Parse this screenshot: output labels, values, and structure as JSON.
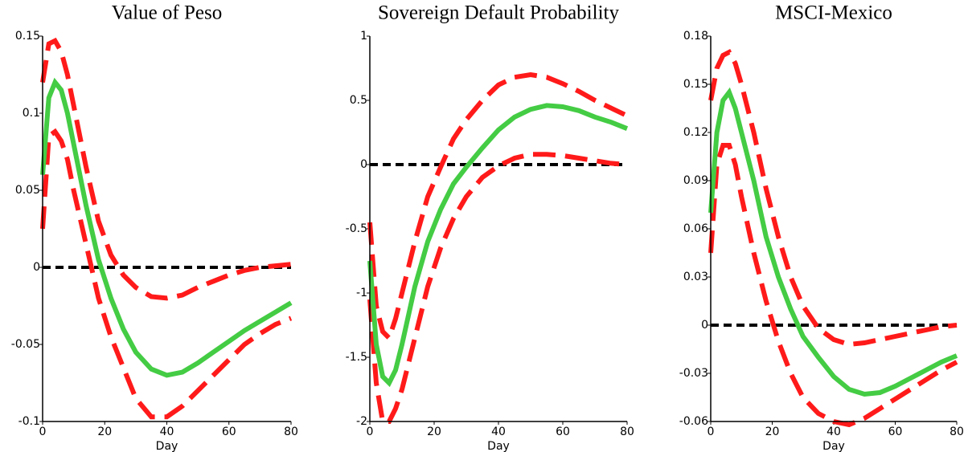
{
  "chart_data": [
    {
      "type": "line",
      "title": "Value of  Peso",
      "xlabel": "Day",
      "x": [
        0,
        2,
        4,
        6,
        8,
        10,
        14,
        18,
        22,
        26,
        30,
        35,
        40,
        45,
        50,
        55,
        60,
        65,
        70,
        75,
        80
      ],
      "xlim": [
        0,
        80
      ],
      "xticks": [
        0,
        20,
        40,
        60,
        80
      ],
      "ylim": [
        -0.1,
        0.15
      ],
      "yticks": [
        -0.1,
        -0.05,
        0,
        0.05,
        0.1,
        0.15
      ],
      "hline": 0,
      "series": [
        {
          "color": "#ff1a1a",
          "style": "dashed",
          "values": [
            0.12,
            0.145,
            0.147,
            0.14,
            0.125,
            0.105,
            0.065,
            0.03,
            0.008,
            -0.005,
            -0.013,
            -0.019,
            -0.02,
            -0.018,
            -0.013,
            -0.009,
            -0.005,
            -0.002,
            0,
            0.001,
            0.002
          ]
        },
        {
          "color": "#ff1a1a",
          "style": "dashed",
          "values": [
            0.025,
            0.085,
            0.088,
            0.082,
            0.07,
            0.05,
            0.015,
            -0.02,
            -0.045,
            -0.065,
            -0.085,
            -0.097,
            -0.097,
            -0.09,
            -0.08,
            -0.07,
            -0.06,
            -0.05,
            -0.043,
            -0.037,
            -0.033
          ]
        },
        {
          "color": "#44cc44",
          "style": "solid",
          "values": [
            0.06,
            0.11,
            0.12,
            0.115,
            0.1,
            0.08,
            0.04,
            0.005,
            -0.02,
            -0.04,
            -0.055,
            -0.066,
            -0.07,
            -0.068,
            -0.062,
            -0.055,
            -0.048,
            -0.041,
            -0.035,
            -0.029,
            -0.023
          ]
        }
      ]
    },
    {
      "type": "line",
      "title": "Sovereign Default Probability",
      "xlabel": "Day",
      "x": [
        0,
        2,
        4,
        6,
        8,
        10,
        14,
        18,
        22,
        26,
        30,
        35,
        40,
        45,
        50,
        55,
        60,
        65,
        70,
        75,
        80
      ],
      "xlim": [
        0,
        80
      ],
      "xticks": [
        0,
        20,
        40,
        60,
        80
      ],
      "ylim": [
        -2,
        1
      ],
      "yticks": [
        -2,
        -1.5,
        -1,
        -0.5,
        0,
        0.5,
        1
      ],
      "hline": 0,
      "series": [
        {
          "color": "#ff1a1a",
          "style": "dashed",
          "values": [
            -0.45,
            -1.1,
            -1.3,
            -1.35,
            -1.2,
            -1.0,
            -0.6,
            -0.25,
            -0.02,
            0.2,
            0.35,
            0.5,
            0.62,
            0.68,
            0.7,
            0.68,
            0.63,
            0.57,
            0.5,
            0.44,
            0.38
          ]
        },
        {
          "color": "#ff1a1a",
          "style": "dashed",
          "values": [
            -1.05,
            -1.7,
            -2.0,
            -2.0,
            -1.9,
            -1.75,
            -1.35,
            -0.95,
            -0.65,
            -0.42,
            -0.25,
            -0.1,
            -0.01,
            0.05,
            0.08,
            0.08,
            0.07,
            0.05,
            0.03,
            0.01,
            0.0
          ]
        },
        {
          "color": "#44cc44",
          "style": "solid",
          "values": [
            -0.75,
            -1.4,
            -1.65,
            -1.7,
            -1.6,
            -1.4,
            -0.95,
            -0.6,
            -0.35,
            -0.15,
            -0.02,
            0.13,
            0.27,
            0.37,
            0.43,
            0.46,
            0.45,
            0.42,
            0.37,
            0.33,
            0.28
          ]
        }
      ]
    },
    {
      "type": "line",
      "title": "MSCI-Mexico",
      "xlabel": "Day",
      "x": [
        0,
        2,
        4,
        6,
        8,
        10,
        14,
        18,
        22,
        26,
        30,
        35,
        40,
        45,
        50,
        55,
        60,
        65,
        70,
        75,
        80
      ],
      "xlim": [
        0,
        80
      ],
      "xticks": [
        0,
        20,
        40,
        60,
        80
      ],
      "ylim": [
        -0.06,
        0.18
      ],
      "yticks": [
        -0.06,
        -0.03,
        0,
        0.03,
        0.06,
        0.09,
        0.12,
        0.15,
        0.18
      ],
      "hline": 0,
      "series": [
        {
          "color": "#ff1a1a",
          "style": "dashed",
          "values": [
            0.14,
            0.16,
            0.168,
            0.17,
            0.163,
            0.15,
            0.12,
            0.085,
            0.055,
            0.03,
            0.012,
            -0.002,
            -0.009,
            -0.012,
            -0.011,
            -0.009,
            -0.007,
            -0.005,
            -0.003,
            -0.001,
            0
          ]
        },
        {
          "color": "#ff1a1a",
          "style": "dashed",
          "values": [
            0.045,
            0.1,
            0.112,
            0.112,
            0.1,
            0.08,
            0.045,
            0.015,
            -0.01,
            -0.03,
            -0.045,
            -0.055,
            -0.06,
            -0.062,
            -0.058,
            -0.052,
            -0.046,
            -0.04,
            -0.034,
            -0.028,
            -0.023
          ]
        },
        {
          "color": "#44cc44",
          "style": "solid",
          "values": [
            0.07,
            0.12,
            0.14,
            0.145,
            0.135,
            0.12,
            0.09,
            0.055,
            0.03,
            0.01,
            -0.007,
            -0.02,
            -0.032,
            -0.04,
            -0.043,
            -0.042,
            -0.038,
            -0.033,
            -0.028,
            -0.023,
            -0.019
          ]
        }
      ]
    }
  ]
}
